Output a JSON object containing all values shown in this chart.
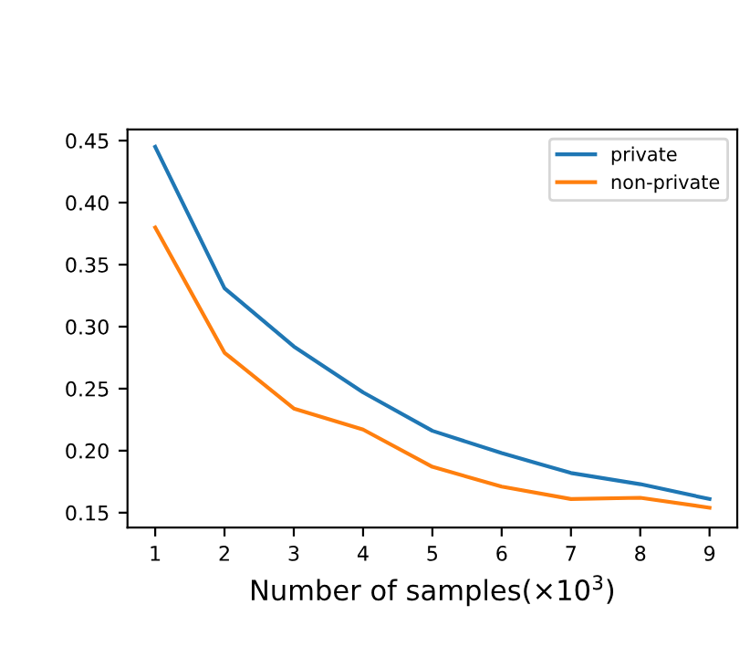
{
  "chart_data": {
    "type": "line",
    "xlabel": "Number of samples(×10$^{3}$)",
    "x": [
      1,
      2,
      3,
      4,
      5,
      6,
      7,
      8,
      9
    ],
    "series": [
      {
        "name": "private",
        "color": "#1f77b4",
        "values": [
          0.445,
          0.331,
          0.284,
          0.247,
          0.216,
          0.198,
          0.182,
          0.173,
          0.161
        ]
      },
      {
        "name": "non-private",
        "color": "#ff7f0e",
        "values": [
          0.38,
          0.279,
          0.234,
          0.217,
          0.187,
          0.171,
          0.161,
          0.162,
          0.154
        ]
      }
    ],
    "xlim": [
      0.6,
      9.4
    ],
    "xticks": [
      1,
      2,
      3,
      4,
      5,
      6,
      7,
      8,
      9
    ],
    "ylim": [
      0.138,
      0.459
    ],
    "yticks": [
      {
        "value": 0.15,
        "label": "0.15"
      },
      {
        "value": 0.2,
        "label": "0.20"
      },
      {
        "value": 0.25,
        "label": "0.25"
      },
      {
        "value": 0.3,
        "label": "0.30"
      },
      {
        "value": 0.35,
        "label": "0.35"
      },
      {
        "value": 0.4,
        "label": "0.40"
      },
      {
        "value": 0.45,
        "label": "0.45"
      }
    ],
    "legend": "top right",
    "grid": false,
    "marker": "none",
    "line_style": "solid"
  }
}
